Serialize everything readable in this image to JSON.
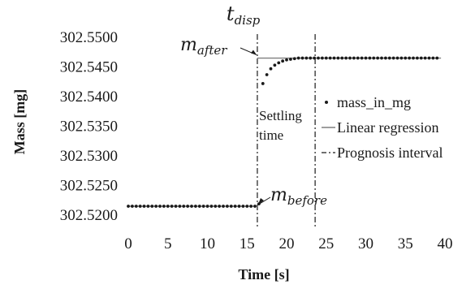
{
  "chart_data": {
    "type": "scatter",
    "title": "",
    "xlabel": "Time [s]",
    "ylabel": "Mass [mg]",
    "xlim": [
      0,
      40
    ],
    "ylim": [
      302.52,
      302.55
    ],
    "x_ticks": [
      "0",
      "5",
      "10",
      "15",
      "20",
      "25",
      "30",
      "35",
      "40"
    ],
    "y_ticks": [
      "302.5200",
      "302.5250",
      "302.5300",
      "302.5350",
      "302.5400",
      "302.5450",
      "302.5500"
    ],
    "grid": false,
    "legend_position": "right",
    "series": [
      {
        "name": "mass_in_mg",
        "kind": "points",
        "color": "#1a1a1a",
        "x": [
          0,
          0.5,
          1,
          1.5,
          2,
          2.5,
          3,
          3.5,
          4,
          4.5,
          5,
          5.5,
          6,
          6.5,
          7,
          7.5,
          8,
          8.5,
          9,
          9.5,
          10,
          10.5,
          11,
          11.5,
          12,
          12.5,
          13,
          13.5,
          14,
          14.5,
          15,
          15.5,
          16,
          16.5,
          17,
          17.5,
          18,
          18.5,
          19,
          19.5,
          20,
          20.5,
          21,
          21.5,
          22,
          22.5,
          23,
          23.5,
          24,
          24.5,
          25,
          25.5,
          26,
          26.5,
          27,
          27.5,
          28,
          28.5,
          29,
          29.5,
          30,
          30.5,
          31,
          31.5,
          32,
          32.5,
          33,
          33.5,
          34,
          34.5,
          35,
          35.5,
          36,
          36.5,
          37,
          37.5,
          38,
          38.5,
          39
        ],
        "y": [
          302.5215,
          302.5215,
          302.5215,
          302.5215,
          302.5215,
          302.5215,
          302.5215,
          302.5215,
          302.5215,
          302.5215,
          302.5215,
          302.5215,
          302.5215,
          302.5215,
          302.5215,
          302.5215,
          302.5215,
          302.5215,
          302.5215,
          302.5215,
          302.5215,
          302.5215,
          302.5215,
          302.5215,
          302.5215,
          302.5215,
          302.5215,
          302.5215,
          302.5215,
          302.5215,
          302.5215,
          302.5215,
          302.5215,
          302.5219,
          302.5422,
          302.5437,
          302.5447,
          302.5453,
          302.5457,
          302.546,
          302.5462,
          302.5463,
          302.5464,
          302.5465,
          302.5465,
          302.5465,
          302.5465,
          302.5465,
          302.5465,
          302.5465,
          302.5465,
          302.5465,
          302.5465,
          302.5465,
          302.5465,
          302.5465,
          302.5465,
          302.5465,
          302.5465,
          302.5465,
          302.5465,
          302.5465,
          302.5465,
          302.5465,
          302.5465,
          302.5465,
          302.5465,
          302.5465,
          302.5465,
          302.5465,
          302.5465,
          302.5465,
          302.5465,
          302.5465,
          302.5465,
          302.5465,
          302.5465,
          302.5465,
          302.5465
        ]
      },
      {
        "name": "Linear regression",
        "kind": "line",
        "color": "#7f7f7f",
        "segments": [
          {
            "x": [
              0,
              16
            ],
            "y": [
              302.5215,
              302.5215
            ]
          },
          {
            "x": [
              16.3,
              39.5
            ],
            "y": [
              302.5465,
              302.5465
            ]
          }
        ]
      },
      {
        "name": "Prognosis interval",
        "kind": "vertical-dashdot",
        "color": "#1a1a1a",
        "x": [
          16.3,
          23.6
        ]
      }
    ],
    "annotations": [
      {
        "id": "t_disp",
        "base": "t",
        "sub": "disp",
        "x": 16.3
      },
      {
        "id": "m_after",
        "base": "m",
        "sub": "after",
        "x": 16.3,
        "y": 302.5465
      },
      {
        "id": "m_before",
        "base": "m",
        "sub": "before",
        "x": 16.3,
        "y": 302.5215
      },
      {
        "id": "settling",
        "lines": [
          "Settling",
          "time"
        ]
      }
    ]
  }
}
